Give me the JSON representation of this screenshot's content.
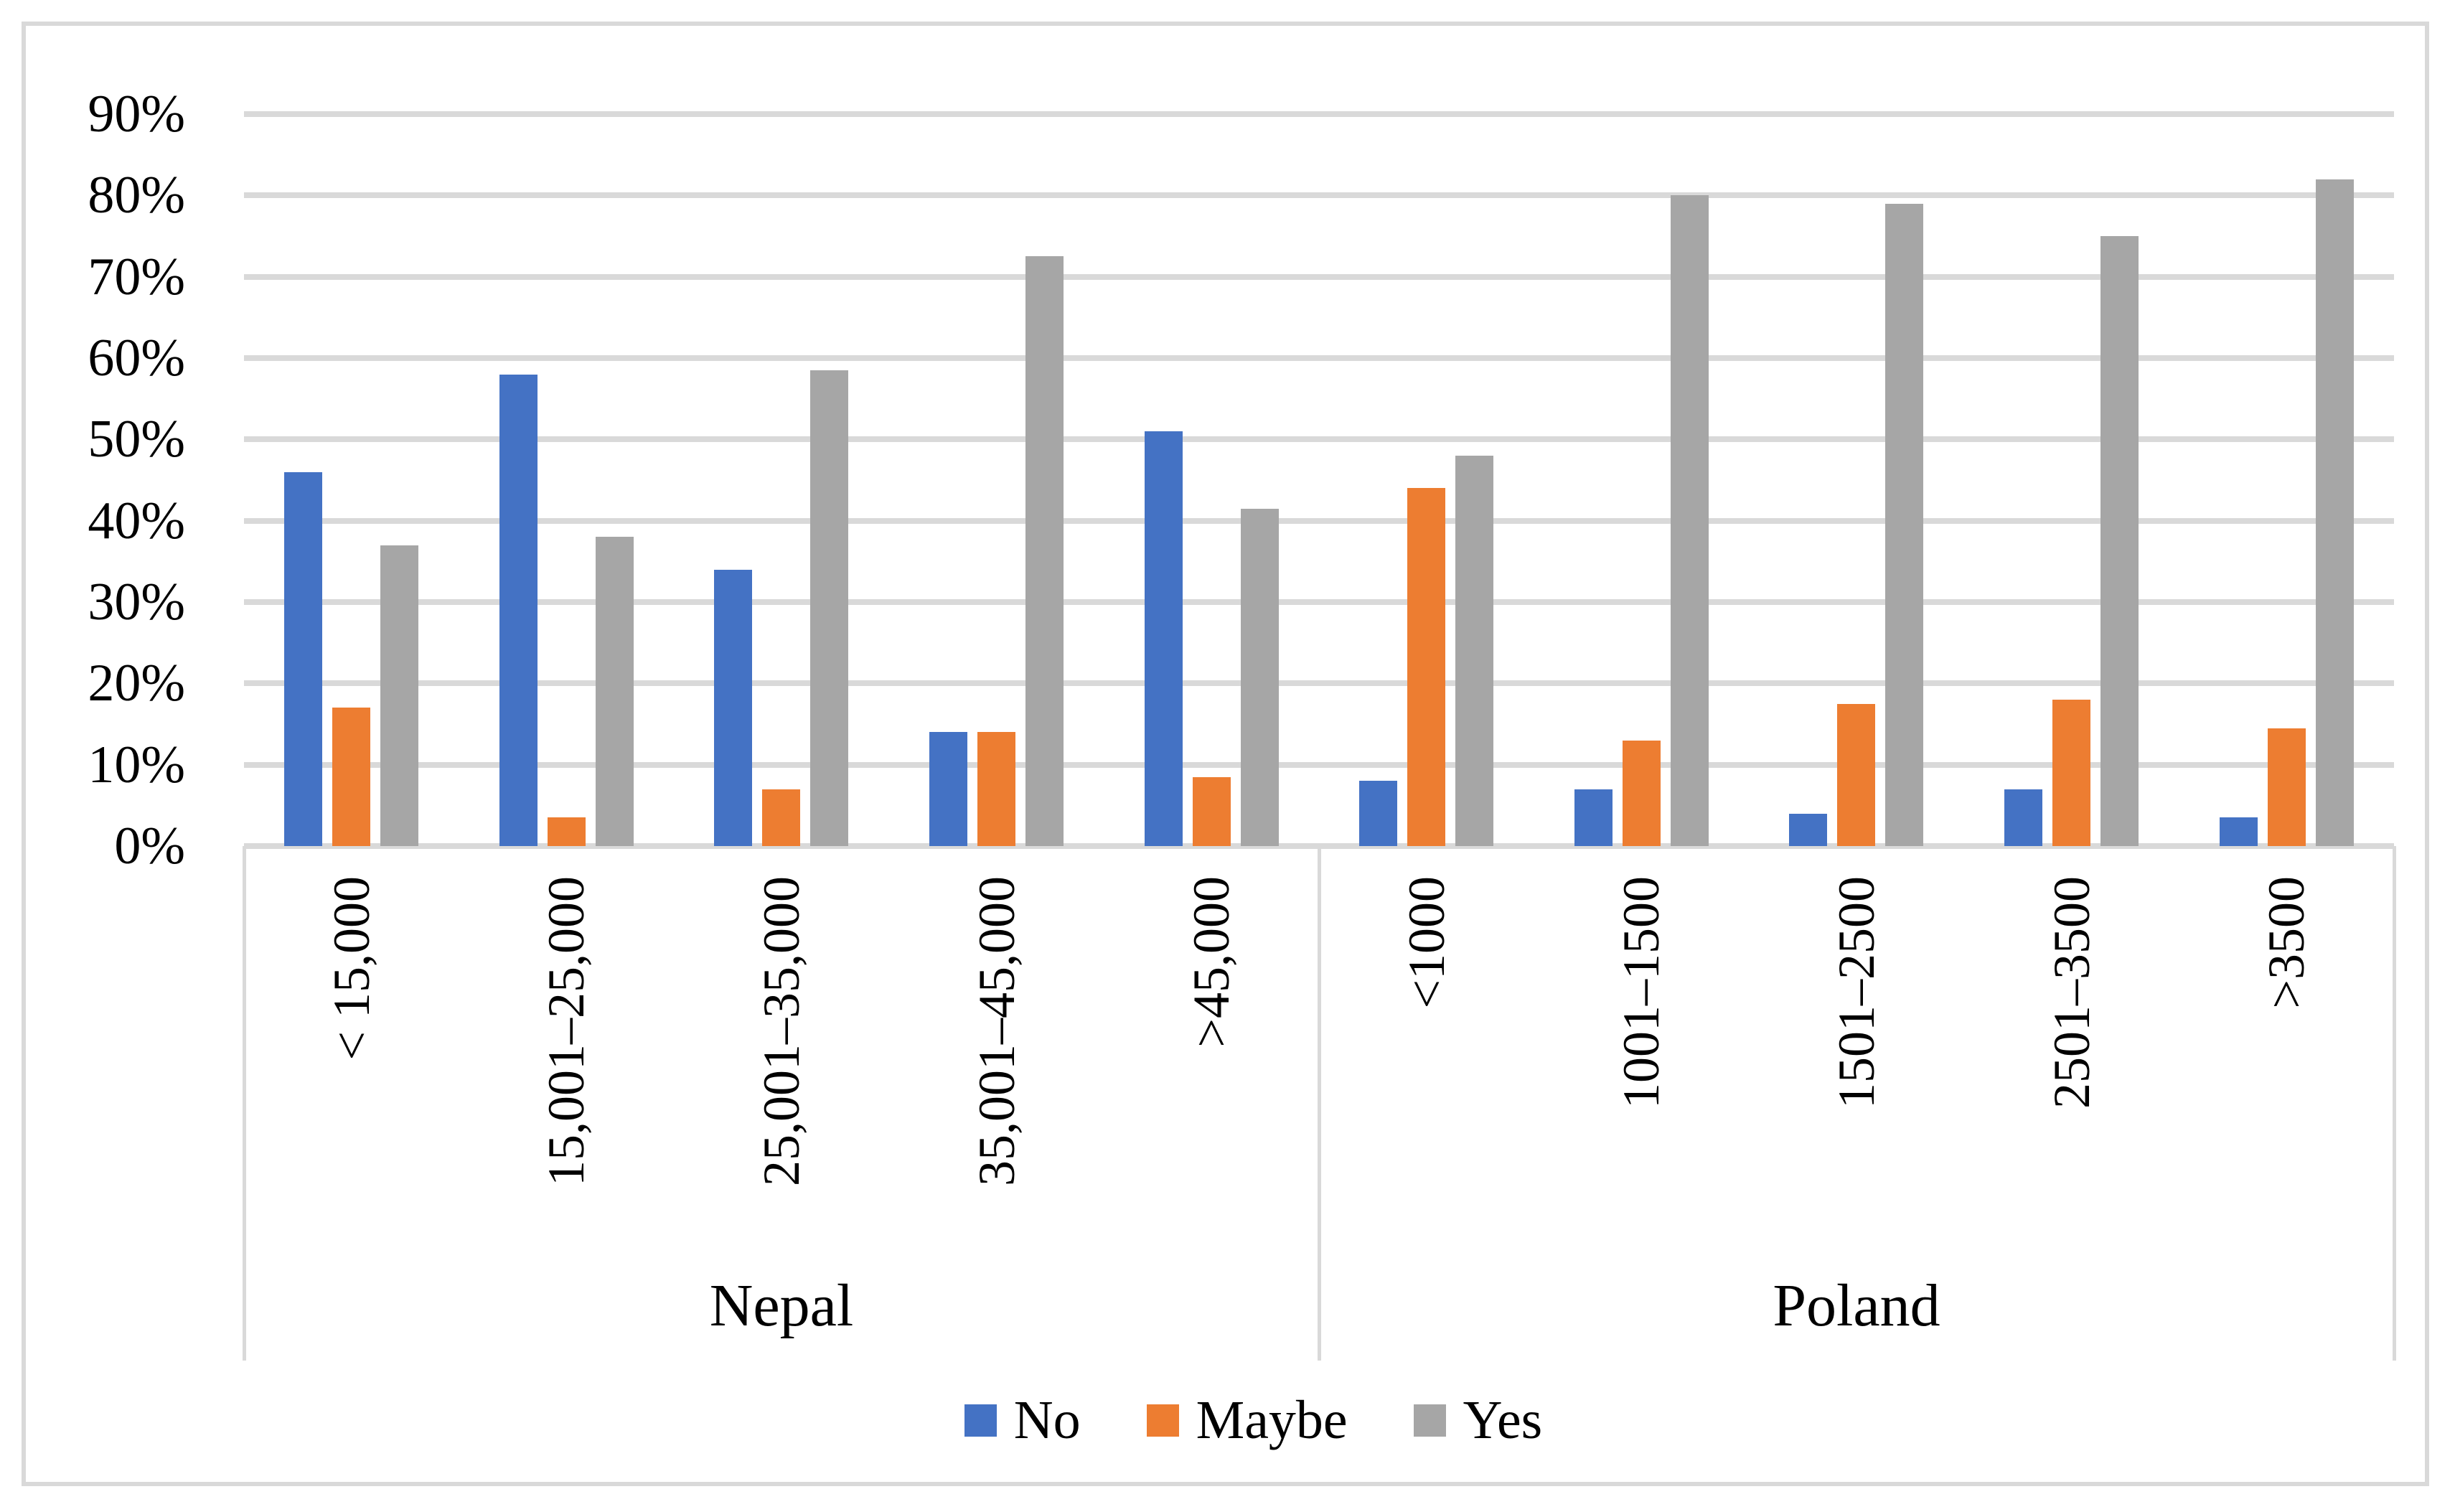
{
  "chart_data": {
    "type": "bar",
    "title": "",
    "xlabel": "",
    "ylabel": "",
    "grid": true,
    "legend_position": "bottom",
    "ylim": [
      0,
      90
    ],
    "ytick_step": 10,
    "ytick_labels": [
      "0%",
      "10%",
      "20%",
      "30%",
      "40%",
      "50%",
      "60%",
      "70%",
      "80%",
      "90%"
    ],
    "categories": [
      "< 15,000",
      "15,001–25,000",
      "25,001–35,000",
      "35,001–45,000",
      ">45,000",
      "<1000",
      "1001–1500",
      "1501–2500",
      "2501–3500",
      ">3500"
    ],
    "category_groups": [
      {
        "label": "Nepal",
        "span": 5
      },
      {
        "label": "Poland",
        "span": 5
      }
    ],
    "series": [
      {
        "name": "No",
        "color": "#4472C4",
        "values": [
          46,
          58,
          34,
          14,
          51,
          8,
          7,
          4,
          7,
          3.5
        ]
      },
      {
        "name": "Maybe",
        "color": "#ED7D31",
        "values": [
          17,
          3.5,
          7,
          14,
          8.5,
          44,
          13,
          17.5,
          18,
          14.5
        ]
      },
      {
        "name": "Yes",
        "color": "#A6A6A6",
        "values": [
          37,
          38,
          58.5,
          72.5,
          41.5,
          48,
          80,
          79,
          75,
          82
        ]
      }
    ]
  },
  "style": {
    "gridline_color": "#D9D9D9",
    "axis_line_color": "#D9D9D9",
    "frame_border_color": "#D9D9D9",
    "text_color": "#000000",
    "background": "#FFFFFF"
  }
}
